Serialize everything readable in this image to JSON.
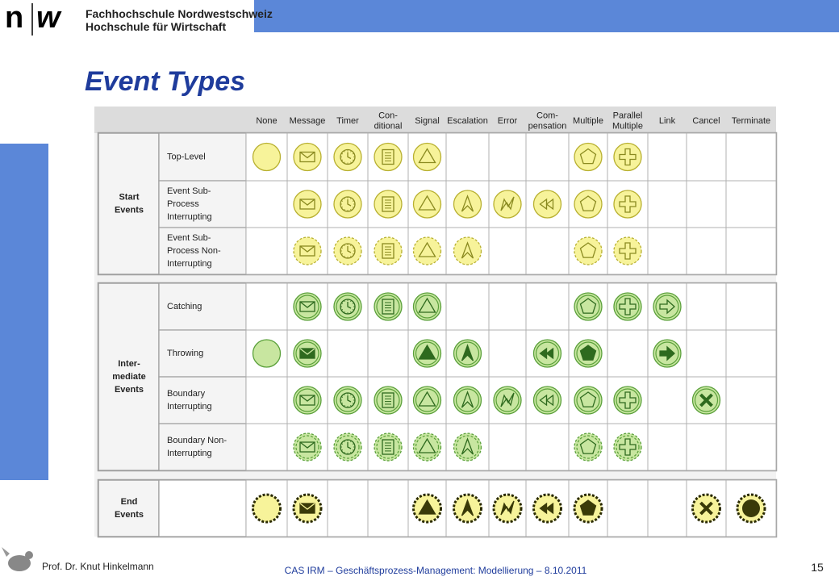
{
  "header": {
    "logo": [
      "n",
      "w"
    ],
    "lines": [
      "Fachhochschule Nordwestschweiz",
      "Hochschule für Wirtschaft"
    ]
  },
  "title": "Event Types",
  "table": {
    "columns": [
      [
        "None"
      ],
      [
        "Message"
      ],
      [
        "Timer"
      ],
      [
        "Con-",
        "ditional"
      ],
      [
        "Signal"
      ],
      [
        "Escalation"
      ],
      [
        "Error"
      ],
      [
        "Com-",
        "pensation"
      ],
      [
        "Multiple"
      ],
      [
        "Parallel",
        "Multiple"
      ],
      [
        "Link"
      ],
      [
        "Cancel"
      ],
      [
        "Terminate"
      ]
    ],
    "groups": [
      {
        "label": [
          "Start",
          "Events"
        ],
        "rows": [
          [
            "Top-Level"
          ],
          [
            "Event Sub-",
            "Process",
            "Interrupting"
          ],
          [
            "Event Sub-",
            "Process Non-",
            "Interrupting"
          ]
        ]
      },
      {
        "label": [
          "Inter-",
          "mediate",
          "Events"
        ],
        "rows": [
          [
            "Catching"
          ],
          [
            "Throwing"
          ],
          [
            "Boundary",
            "Interrupting"
          ],
          [
            "Boundary Non-",
            "Interrupting"
          ]
        ]
      },
      {
        "label": [
          "End",
          "Events"
        ]
      }
    ]
  },
  "footer": {
    "author": "Prof. Dr. Knut Hinkelmann",
    "course": "CAS IRM – Geschäftsprozess-Management: Modellierung – 8.10.2011",
    "page": "15"
  }
}
